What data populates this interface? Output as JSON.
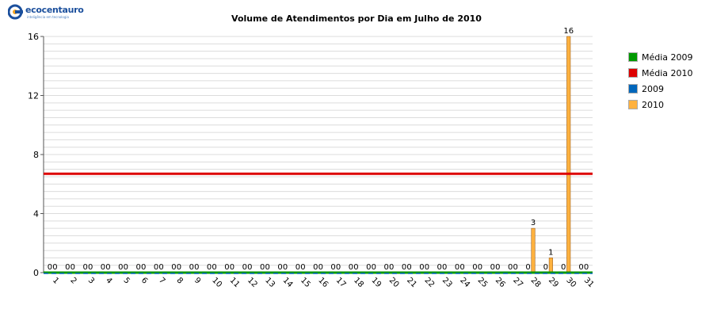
{
  "logo": {
    "brand": "ecocentauro",
    "tagline": "inteligência em tecnologia",
    "color": "#1b4f9c"
  },
  "chart_data": {
    "type": "bar",
    "title": "Volume de Atendimentos por Dia em Julho de 2010",
    "xlabel": "",
    "ylabel": "",
    "ylim": [
      0,
      16
    ],
    "yticks": [
      0,
      4,
      8,
      12,
      16
    ],
    "grid": true,
    "legend_position": "right",
    "categories": [
      "1",
      "2",
      "3",
      "4",
      "5",
      "6",
      "7",
      "8",
      "9",
      "10",
      "11",
      "12",
      "13",
      "14",
      "15",
      "16",
      "17",
      "18",
      "19",
      "20",
      "21",
      "22",
      "23",
      "24",
      "25",
      "26",
      "27",
      "28",
      "29",
      "30",
      "31"
    ],
    "series": [
      {
        "name": "Média 2009",
        "color": "#009900",
        "kind": "line",
        "value": 0
      },
      {
        "name": "Média 2010",
        "color": "#dd0000",
        "kind": "line",
        "value": 6.7
      },
      {
        "name": "2009",
        "color": "#0066bb",
        "kind": "bar",
        "values": [
          0,
          0,
          0,
          0,
          0,
          0,
          0,
          0,
          0,
          0,
          0,
          0,
          0,
          0,
          0,
          0,
          0,
          0,
          0,
          0,
          0,
          0,
          0,
          0,
          0,
          0,
          0,
          0,
          0,
          0,
          0
        ]
      },
      {
        "name": "2010",
        "color": "#ffb23f",
        "kind": "bar",
        "values": [
          0,
          0,
          0,
          0,
          0,
          0,
          0,
          0,
          0,
          0,
          0,
          0,
          0,
          0,
          0,
          0,
          0,
          0,
          0,
          0,
          0,
          0,
          0,
          0,
          0,
          0,
          0,
          3,
          1,
          16,
          0
        ]
      }
    ]
  }
}
